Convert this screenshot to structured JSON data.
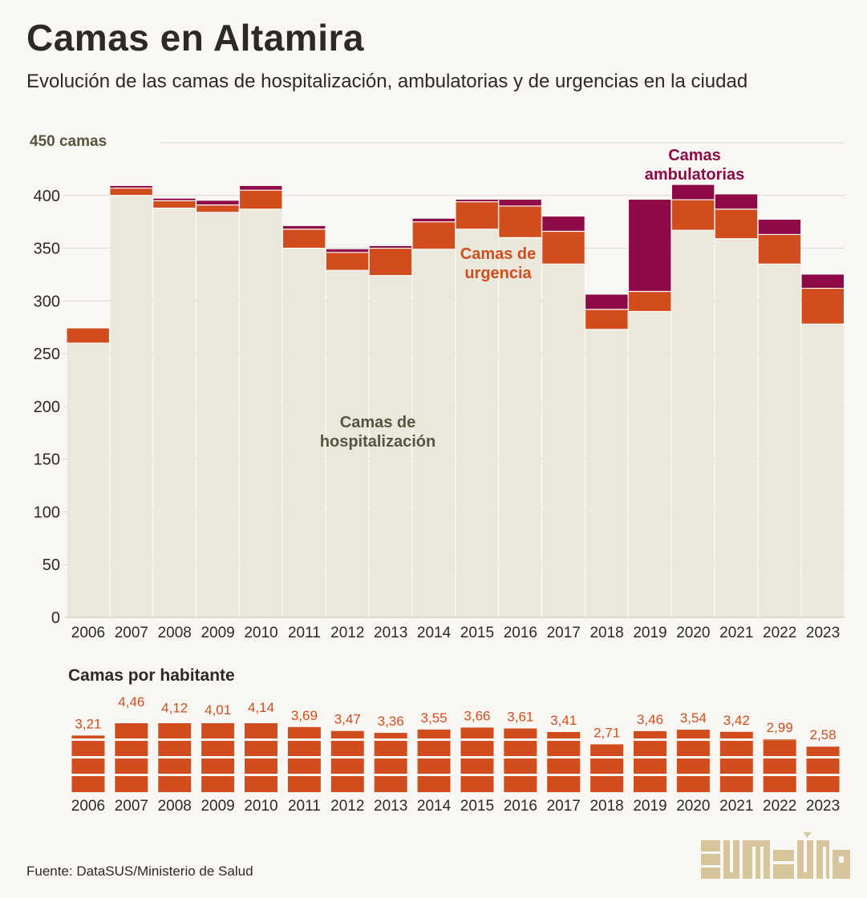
{
  "header": {
    "title": "Camas en Altamira",
    "subtitle": "Evolución de las camas de hospitalización, ambulatorias y de urgencias en la ciudad"
  },
  "colors": {
    "hospitalizacion": "#ebe7da",
    "urgencia": "#d24d1d",
    "ambulatorias": "#8e0b47",
    "background": "#f9f7f3",
    "grid": "#dcd8cf",
    "text": "#2d2a26",
    "axis_title": "#57553e",
    "logo": "#d6c49a"
  },
  "chart_data": [
    {
      "type": "bar",
      "stacked": true,
      "ylim": [
        0,
        450
      ],
      "yticks": [
        0,
        50,
        100,
        150,
        200,
        250,
        300,
        350,
        400
      ],
      "ytop_label": "450 camas",
      "grid": true,
      "categories": [
        "2006",
        "2007",
        "2008",
        "2009",
        "2010",
        "2011",
        "2012",
        "2013",
        "2014",
        "2015",
        "2016",
        "2017",
        "2018",
        "2019",
        "2020",
        "2021",
        "2022",
        "2023"
      ],
      "series": [
        {
          "name": "Camas de hospitalización",
          "label_lines": [
            "Camas de",
            "hospitalización"
          ],
          "color": "#ebe7da",
          "values": [
            260,
            400,
            388,
            384,
            387,
            350,
            329,
            324,
            349,
            368,
            360,
            335,
            273,
            290,
            367,
            359,
            335,
            278
          ]
        },
        {
          "name": "Camas de urgencia",
          "label_lines": [
            "Camas de",
            "urgencia"
          ],
          "color": "#d24d1d",
          "values": [
            14,
            7,
            7,
            7,
            18,
            18,
            17,
            26,
            26,
            26,
            30,
            31,
            19,
            19,
            29,
            28,
            28,
            34
          ]
        },
        {
          "name": "Camas ambulatorias",
          "label_lines": [
            "Camas",
            "ambulatorias"
          ],
          "color": "#8e0b47",
          "values": [
            0,
            2,
            2,
            4,
            4,
            3,
            3,
            2,
            3,
            2,
            6,
            14,
            14,
            87,
            14,
            14,
            14,
            13
          ]
        }
      ]
    },
    {
      "type": "bar",
      "title": "Camas por habitante",
      "categories": [
        "2006",
        "2007",
        "2008",
        "2009",
        "2010",
        "2011",
        "2012",
        "2013",
        "2014",
        "2015",
        "2016",
        "2017",
        "2018",
        "2019",
        "2020",
        "2021",
        "2022",
        "2023"
      ],
      "values": [
        3.21,
        4.46,
        4.12,
        4.01,
        4.14,
        3.69,
        3.47,
        3.36,
        3.55,
        3.66,
        3.61,
        3.41,
        2.71,
        3.46,
        3.54,
        3.42,
        2.99,
        2.58
      ],
      "labels": [
        "3,21",
        "4,46",
        "4,12",
        "4,01",
        "4,14",
        "3,69",
        "3,47",
        "3,36",
        "3,55",
        "3,66",
        "3,61",
        "3,41",
        "2,71",
        "3,46",
        "3,54",
        "3,42",
        "2,99",
        "2,58"
      ],
      "color": "#d24d1d"
    }
  ],
  "footer": {
    "source": "Fuente: DataSUS/Ministerio de Salud",
    "logo_name": "sumaúma"
  }
}
